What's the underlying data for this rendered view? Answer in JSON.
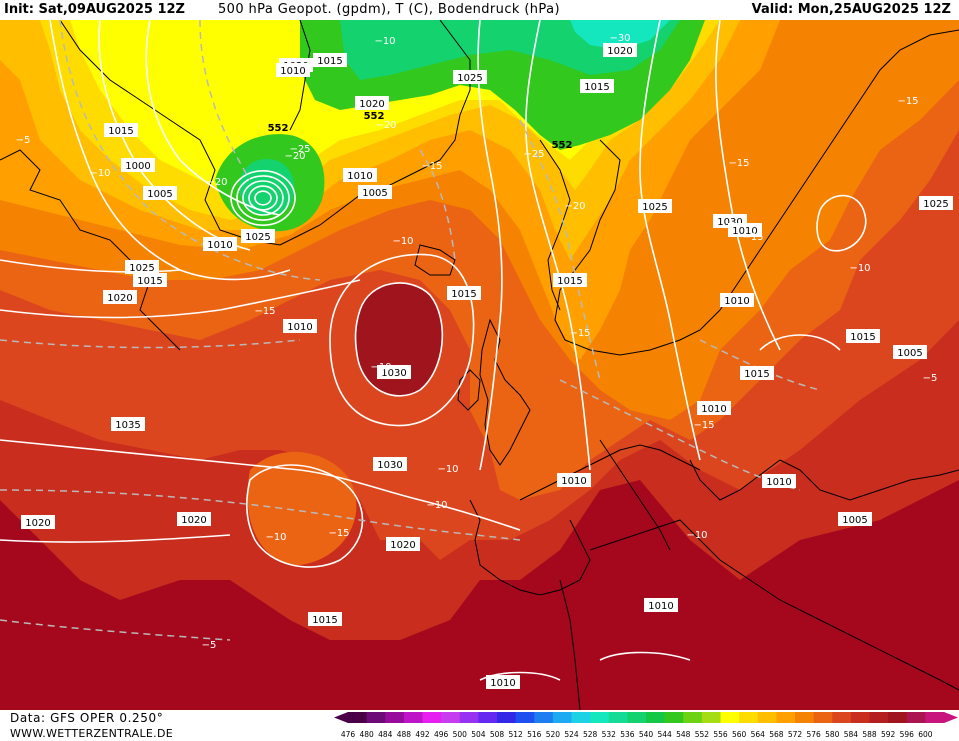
{
  "header": {
    "init": "Init: Sat,09AUG2025 12Z",
    "title": "500 hPa Geopot. (gpdm), T (C), Bodendruck (hPa)",
    "valid": "Valid: Mon,25AUG2025 12Z"
  },
  "footer": {
    "data_source": "Data: GFS OPER 0.250°",
    "website": "WWW.WETTERZENTRALE.DE"
  },
  "colors": {
    "sea_background": "#a5081c",
    "land_lines": "#000000",
    "isobars": "#ffffff",
    "isotherms": "#b9b9b9"
  },
  "colorbar": {
    "levels": [
      "476",
      "480",
      "484",
      "488",
      "492",
      "496",
      "500",
      "504",
      "508",
      "512",
      "516",
      "520",
      "524",
      "528",
      "532",
      "536",
      "540",
      "544",
      "548",
      "552",
      "556",
      "560",
      "564",
      "568",
      "572",
      "576",
      "580",
      "584",
      "588",
      "592",
      "596",
      "600"
    ],
    "colors": [
      "#4a0046",
      "#6e0a78",
      "#960a9c",
      "#be14c8",
      "#e61ef0",
      "#c83cf0",
      "#9632f0",
      "#6428f0",
      "#3228e6",
      "#1e50f0",
      "#1e7df0",
      "#1eaaf0",
      "#1ed2e6",
      "#14e6be",
      "#14dc96",
      "#14d26e",
      "#14c846",
      "#32c81e",
      "#6ed214",
      "#a5dc14",
      "#ffff00",
      "#ffdc00",
      "#ffbe00",
      "#ffa000",
      "#f58200",
      "#eb6414",
      "#dc461e",
      "#c82d1e",
      "#b41e1e",
      "#a0141e",
      "#aa1450",
      "#c8147d"
    ]
  },
  "isobar_labels": [
    "1020",
    "1015",
    "1000",
    "1005",
    "1010",
    "1005",
    "1010",
    "1015",
    "1020",
    "1025",
    "1015",
    "1020",
    "1025",
    "1030",
    "1025",
    "1015",
    "1010",
    "1015",
    "1015",
    "1010",
    "1015",
    "1010",
    "1015",
    "1010",
    "1030",
    "1030",
    "1035",
    "1025",
    "1025",
    "1020",
    "1020",
    "1020",
    "1020",
    "1015",
    "1010",
    "1005",
    "1010",
    "1005",
    "1010",
    "1010",
    "1010",
    "1015"
  ],
  "isotherm_labels": [
    "-5",
    "-10",
    "-20",
    "-25",
    "-20",
    "-15",
    "-20",
    "-25",
    "-20",
    "-30",
    "-15",
    "-15",
    "-10",
    "-15",
    "-15",
    "-10",
    "-10",
    "-15",
    "-10",
    "-10",
    "-15",
    "-10",
    "-15",
    "-10",
    "-10",
    "-5",
    "-5"
  ],
  "height_labels": [
    "552",
    "552",
    "552"
  ]
}
